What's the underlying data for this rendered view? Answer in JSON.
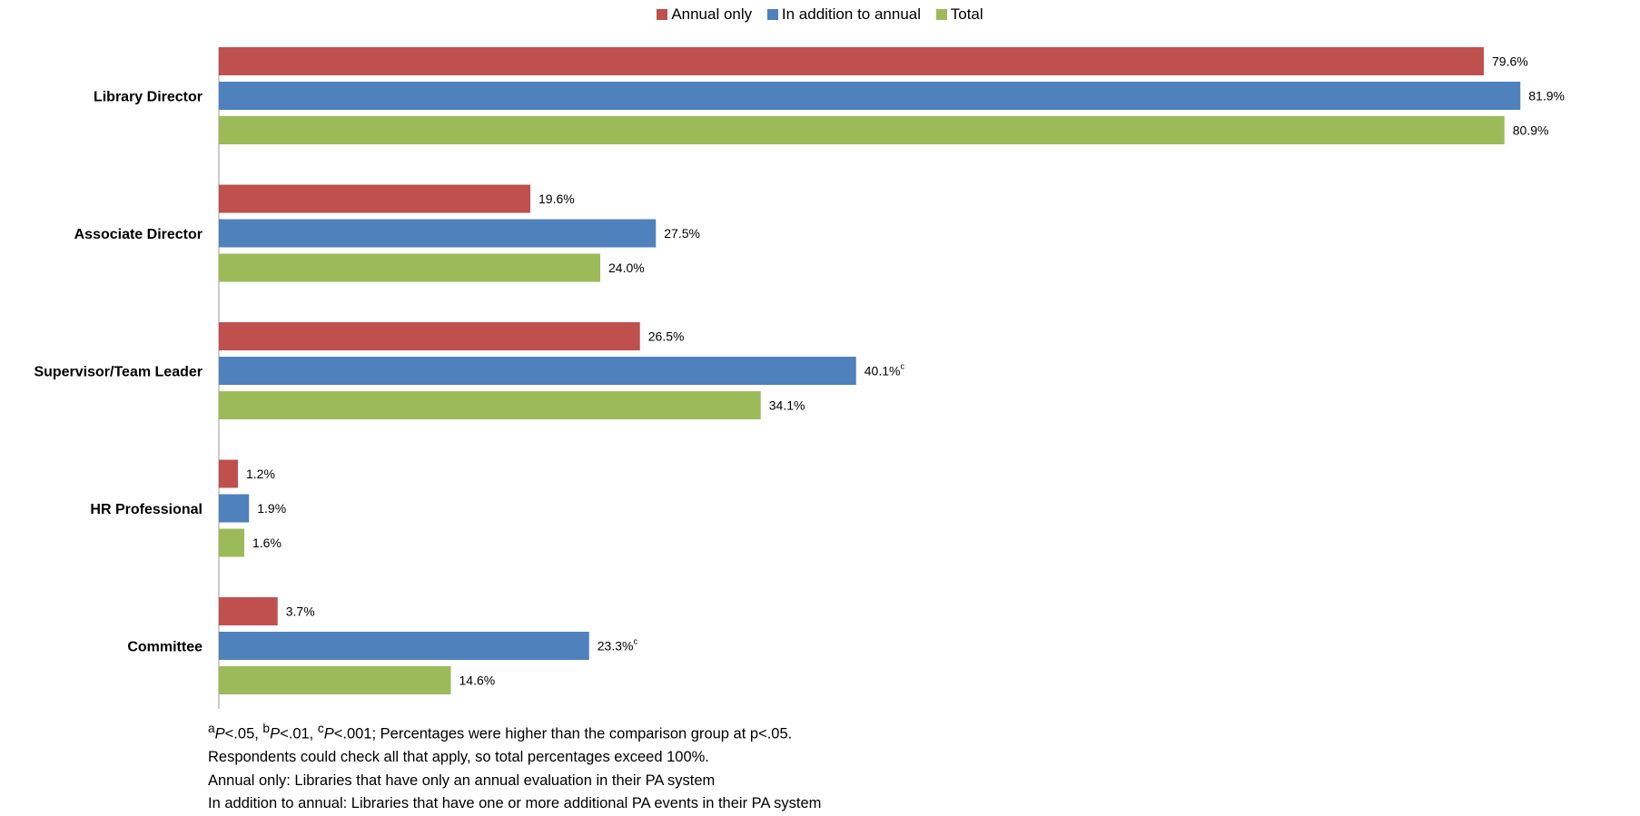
{
  "chart_data": {
    "type": "bar",
    "orientation": "horizontal",
    "categories": [
      "Library Director",
      "Associate Director",
      "Supervisor/Team Leader",
      "HR Professional",
      "Committee"
    ],
    "series": [
      {
        "name": "Annual only",
        "color": "#C0504D",
        "values": [
          79.6,
          19.6,
          26.5,
          1.2,
          3.7
        ],
        "labels": [
          "79.6%",
          "19.6%",
          "26.5%",
          "1.2%",
          "3.7%"
        ],
        "superscripts": [
          "",
          "",
          "",
          "",
          ""
        ]
      },
      {
        "name": "In addition to annual",
        "color": "#4F81BD",
        "values": [
          81.9,
          27.5,
          40.1,
          1.9,
          23.3
        ],
        "labels": [
          "81.9%",
          "27.5%",
          "40.1%",
          "1.9%",
          "23.3%"
        ],
        "superscripts": [
          "",
          "",
          "c",
          "",
          "c"
        ]
      },
      {
        "name": "Total",
        "color": "#9BBB59",
        "values": [
          80.9,
          24.0,
          34.1,
          1.6,
          14.6
        ],
        "labels": [
          "80.9%",
          "24.0%",
          "34.1%",
          "1.6%",
          "14.6%"
        ],
        "superscripts": [
          "",
          "",
          "",
          "",
          ""
        ]
      }
    ],
    "xlim": [
      0,
      100
    ],
    "grid": false,
    "legend": "top"
  },
  "footnotes": {
    "sig": {
      "a": "a",
      "a_text": "P",
      "a_rest": "<.05, ",
      "b": "b",
      "b_text": "P",
      "b_rest": "<.01, ",
      "c": "c",
      "c_text": "P",
      "c_rest": "<.001; Percentages were higher than the comparison group at p<.05."
    },
    "line2": "Respondents could check all that apply, so total percentages exceed 100%.",
    "line3": "Annual only: Libraries that have only an annual evaluation in their PA system",
    "line4": "In addition to annual: Libraries that have one or more additional PA events in their PA system"
  }
}
